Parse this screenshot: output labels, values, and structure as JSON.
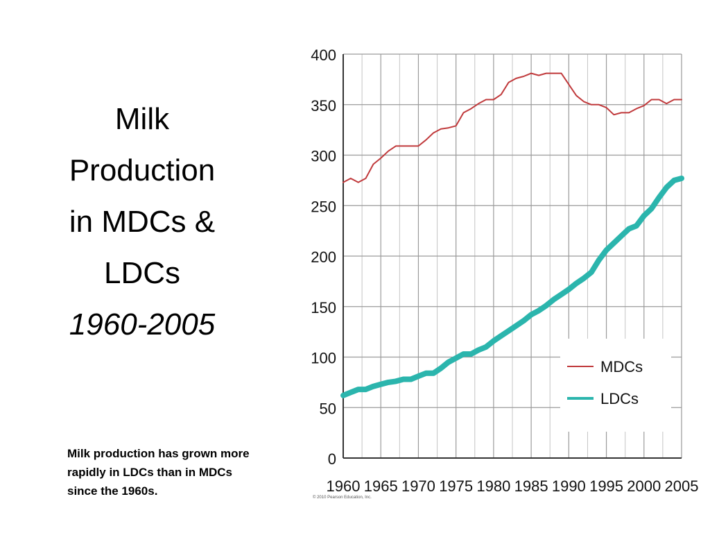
{
  "slide": {
    "title_lines": [
      "Milk",
      "Production",
      "in MDCs &",
      "LDCs"
    ],
    "title_years": "1960-2005",
    "caption": "Milk production has grown more rapidly in LDCs than in MDCs since the 1960s."
  },
  "chart_data": {
    "type": "line",
    "title": "",
    "xlabel": "",
    "ylabel": "",
    "xlim": [
      1960,
      2005
    ],
    "ylim": [
      0,
      400
    ],
    "x_ticks": [
      1960,
      1965,
      1970,
      1975,
      1980,
      1985,
      1990,
      1995,
      2000,
      2005
    ],
    "y_ticks": [
      0,
      50,
      100,
      150,
      200,
      250,
      300,
      350,
      400
    ],
    "grid": true,
    "legend_position": "bottom-right",
    "copyright": "© 2010 Pearson Education, Inc.",
    "x": [
      1960,
      1961,
      1962,
      1963,
      1964,
      1965,
      1966,
      1967,
      1968,
      1969,
      1970,
      1971,
      1972,
      1973,
      1974,
      1975,
      1976,
      1977,
      1978,
      1979,
      1980,
      1981,
      1982,
      1983,
      1984,
      1985,
      1986,
      1987,
      1988,
      1989,
      1990,
      1991,
      1992,
      1993,
      1994,
      1995,
      1996,
      1997,
      1998,
      1999,
      2000,
      2001,
      2002,
      2003,
      2004,
      2005
    ],
    "series": [
      {
        "name": "MDCs",
        "color": "#c0393b",
        "line_width": 2,
        "values": [
          273,
          277,
          273,
          277,
          291,
          297,
          304,
          309,
          309,
          309,
          309,
          315,
          322,
          326,
          327,
          329,
          342,
          346,
          351,
          355,
          355,
          360,
          372,
          376,
          378,
          381,
          379,
          381,
          381,
          381,
          370,
          359,
          353,
          350,
          350,
          347,
          340,
          342,
          342,
          346,
          349,
          355,
          355,
          351,
          355,
          355
        ]
      },
      {
        "name": "LDCs",
        "color": "#2bb5ad",
        "line_width": 8,
        "values": [
          62,
          65,
          68,
          68,
          71,
          73,
          75,
          76,
          78,
          78,
          81,
          84,
          84,
          89,
          95,
          99,
          103,
          103,
          107,
          110,
          116,
          121,
          126,
          131,
          136,
          142,
          146,
          151,
          157,
          162,
          167,
          173,
          178,
          184,
          196,
          206,
          213,
          220,
          227,
          230,
          240,
          247,
          258,
          268,
          275,
          277
        ]
      }
    ]
  }
}
